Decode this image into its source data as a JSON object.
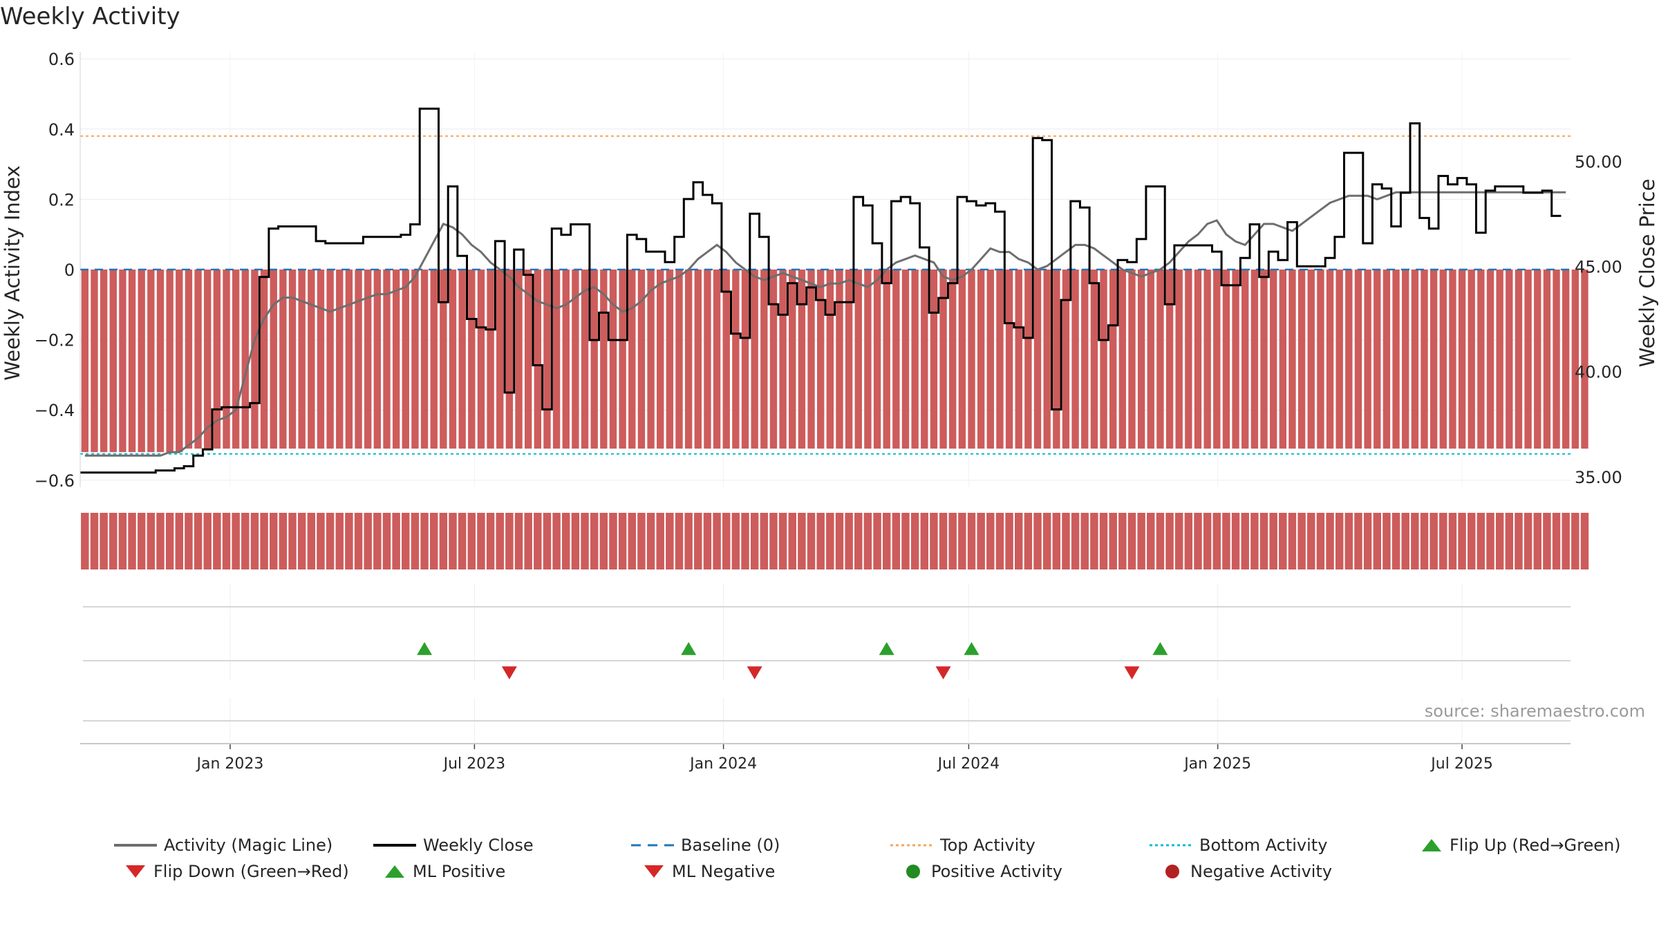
{
  "title": "Weekly Activity",
  "source": "source: sharemaestro.com",
  "colors": {
    "strong_green": "#2e8b57",
    "light_green": "#7fbf7f",
    "strong_red": "#cd5c5c",
    "light_red": "#e9967a",
    "magic_line": "#6e6e6e",
    "close": "#000000",
    "baseline": "#1f77b4",
    "top_line": "#f4a460",
    "bottom_line": "#00bcd4",
    "flip_up": "#2ca02c",
    "flip_down": "#d62728"
  },
  "legend": [
    {
      "label": "Activity (Magic Line)",
      "icon": "magic-line-icon"
    },
    {
      "label": "Weekly Close",
      "icon": "close-line-icon"
    },
    {
      "label": "Baseline (0)",
      "icon": "baseline-icon"
    },
    {
      "label": "Top Activity",
      "icon": "top-line-icon"
    },
    {
      "label": "Bottom Activity",
      "icon": "bottom-line-icon"
    },
    {
      "label": "Flip Up (Red→Green)",
      "icon": "triangle-up-icon"
    },
    {
      "label": "Flip Down (Green→Red)",
      "icon": "triangle-down-icon"
    },
    {
      "label": "ML Positive",
      "icon": "triangle-up-icon"
    },
    {
      "label": "ML Negative",
      "icon": "triangle-down-icon"
    },
    {
      "label": "Positive Activity",
      "icon": "green-dot-icon"
    },
    {
      "label": "Negative Activity",
      "icon": "red-dot-icon"
    }
  ],
  "chart_data": {
    "type": "bar",
    "title": "Weekly Activity",
    "ylabel": "Weekly Activity Index",
    "y2label": "Weekly Close Price",
    "ylim": [
      -0.62,
      0.62
    ],
    "y2lim": [
      34.5,
      55.2
    ],
    "yticks": [
      -0.6,
      -0.4,
      -0.2,
      0,
      0.2,
      0.4,
      0.6
    ],
    "ytick_labels": [
      "−0.6",
      "−0.4",
      "−0.2",
      "0",
      "0.2",
      "0.4",
      "0.6"
    ],
    "y2ticks": [
      35,
      40,
      45,
      50
    ],
    "y2tick_labels": [
      "35.00",
      "40.00",
      "45.00",
      "50.00"
    ],
    "x_start": "2022-10-03",
    "weeks": 158,
    "xticks": [
      {
        "label": "Jan 2023",
        "week": 15.4
      },
      {
        "label": "Jul 2023",
        "week": 41.3
      },
      {
        "label": "Jan 2024",
        "week": 67.7
      },
      {
        "label": "Jul 2024",
        "week": 93.7
      },
      {
        "label": "Jan 2025",
        "week": 120.1
      },
      {
        "label": "Jul 2025",
        "week": 146.0
      }
    ],
    "top_activity": 0.38,
    "bottom_activity": -0.525,
    "series": [
      {
        "name": "Weekly Activity Index",
        "type": "bar",
        "values": [
          -0.52,
          -0.52,
          -0.52,
          -0.52,
          -0.52,
          -0.52,
          -0.52,
          -0.52,
          -0.52,
          -0.52,
          -0.52,
          -0.51,
          -0.51,
          -0.51,
          -0.51,
          -0.51,
          -0.51,
          -0.51,
          -0.51,
          -0.51,
          -0.51,
          -0.51,
          -0.51,
          -0.51,
          -0.51,
          -0.51,
          -0.51,
          -0.51,
          -0.51,
          -0.51,
          -0.51,
          -0.51,
          -0.51,
          -0.51,
          -0.51,
          -0.51,
          -0.51,
          -0.51,
          -0.51,
          -0.51,
          -0.51,
          -0.51,
          -0.51,
          -0.51,
          -0.51,
          -0.51,
          -0.51,
          -0.51,
          -0.51,
          -0.51,
          -0.51,
          -0.51,
          -0.51,
          -0.51,
          -0.51,
          -0.51,
          -0.51,
          -0.51,
          -0.51,
          -0.51,
          -0.51,
          -0.51,
          -0.51,
          -0.51,
          -0.51,
          -0.51,
          -0.51,
          -0.51,
          -0.51,
          -0.51,
          -0.51,
          -0.51,
          -0.51,
          -0.51,
          -0.51,
          -0.51,
          -0.51,
          -0.51,
          -0.51,
          -0.51,
          -0.51,
          -0.51,
          -0.51,
          -0.51,
          -0.51,
          -0.51,
          -0.51,
          -0.51,
          -0.51,
          -0.51,
          -0.51,
          -0.51,
          -0.51,
          -0.51,
          -0.51,
          -0.51,
          -0.51,
          -0.51,
          -0.51,
          -0.51,
          -0.51,
          -0.51,
          -0.51,
          -0.51,
          -0.51,
          -0.51,
          -0.51,
          -0.51,
          -0.51,
          -0.51,
          -0.51,
          -0.51,
          -0.51,
          -0.51,
          -0.51,
          -0.51,
          -0.51,
          -0.51,
          -0.51,
          -0.51,
          -0.51,
          -0.51,
          -0.51,
          -0.51,
          -0.51,
          -0.51,
          -0.51,
          -0.51,
          -0.51,
          -0.51,
          -0.51,
          -0.51,
          -0.51,
          -0.51,
          -0.51,
          -0.51,
          -0.51,
          -0.51,
          -0.51,
          -0.51,
          -0.51,
          -0.51,
          -0.51,
          -0.51,
          -0.51,
          -0.51,
          -0.51,
          -0.51,
          -0.51,
          -0.51,
          -0.51,
          -0.51,
          -0.51,
          -0.51,
          -0.51,
          -0.51,
          -0.51,
          -0.51,
          -0.51,
          -0.51
        ]
      },
      {
        "name": "Activity (Magic Line)",
        "type": "line",
        "values": [
          -0.53,
          -0.53,
          -0.53,
          -0.53,
          -0.53,
          -0.53,
          -0.53,
          -0.53,
          -0.53,
          -0.52,
          -0.52,
          -0.5,
          -0.48,
          -0.45,
          -0.43,
          -0.42,
          -0.4,
          -0.3,
          -0.2,
          -0.14,
          -0.1,
          -0.08,
          -0.08,
          -0.09,
          -0.1,
          -0.11,
          -0.12,
          -0.11,
          -0.1,
          -0.09,
          -0.08,
          -0.07,
          -0.07,
          -0.06,
          -0.05,
          -0.02,
          0.03,
          0.08,
          0.13,
          0.12,
          0.1,
          0.07,
          0.05,
          0.02,
          0.0,
          -0.02,
          -0.05,
          -0.07,
          -0.09,
          -0.1,
          -0.11,
          -0.1,
          -0.08,
          -0.06,
          -0.05,
          -0.07,
          -0.1,
          -0.12,
          -0.11,
          -0.09,
          -0.06,
          -0.04,
          -0.03,
          -0.02,
          0.0,
          0.03,
          0.05,
          0.07,
          0.05,
          0.02,
          0.0,
          -0.02,
          -0.03,
          -0.02,
          -0.01,
          -0.02,
          -0.03,
          -0.04,
          -0.05,
          -0.04,
          -0.04,
          -0.03,
          -0.04,
          -0.05,
          -0.03,
          0.0,
          0.02,
          0.03,
          0.04,
          0.03,
          0.02,
          -0.02,
          -0.03,
          -0.02,
          0.0,
          0.03,
          0.06,
          0.05,
          0.05,
          0.03,
          0.02,
          0.0,
          0.01,
          0.03,
          0.05,
          0.07,
          0.07,
          0.06,
          0.04,
          0.02,
          0.0,
          -0.01,
          -0.02,
          -0.01,
          0.0,
          0.02,
          0.05,
          0.08,
          0.1,
          0.13,
          0.14,
          0.1,
          0.08,
          0.07,
          0.1,
          0.13,
          0.13,
          0.12,
          0.11,
          0.13,
          0.15,
          0.17,
          0.19,
          0.2,
          0.21,
          0.21,
          0.21,
          0.2,
          0.21,
          0.22,
          0.22,
          0.22,
          0.22,
          0.22,
          0.22,
          0.22,
          0.22,
          0.22,
          0.22,
          0.22,
          0.22,
          0.22,
          0.22,
          0.22,
          0.22,
          0.22,
          0.22,
          0.22
        ]
      },
      {
        "name": "Weekly Close",
        "type": "line",
        "axis": "right",
        "values": [
          35.2,
          35.2,
          35.2,
          35.2,
          35.2,
          35.2,
          35.2,
          35.2,
          35.3,
          35.3,
          35.4,
          35.5,
          36.0,
          36.3,
          38.2,
          38.3,
          38.3,
          38.3,
          38.5,
          44.5,
          46.8,
          46.9,
          46.9,
          46.9,
          46.9,
          46.2,
          46.1,
          46.1,
          46.1,
          46.1,
          46.4,
          46.4,
          46.4,
          46.4,
          46.5,
          47.0,
          52.5,
          52.5,
          43.3,
          48.8,
          45.5,
          42.5,
          42.1,
          42.0,
          46.2,
          39.0,
          45.8,
          44.6,
          40.3,
          38.2,
          46.8,
          46.5,
          47.0,
          47.0,
          41.5,
          42.8,
          41.5,
          41.5,
          46.5,
          46.3,
          45.7,
          45.7,
          45.2,
          46.4,
          48.2,
          49.0,
          48.4,
          48.0,
          43.8,
          41.8,
          41.6,
          47.5,
          46.4,
          43.2,
          42.7,
          44.2,
          43.2,
          44.0,
          43.4,
          42.7,
          43.3,
          43.3,
          48.3,
          47.9,
          46.1,
          44.2,
          48.1,
          48.3,
          48.0,
          45.9,
          42.8,
          43.5,
          44.2,
          48.3,
          48.1,
          47.9,
          48.0,
          47.6,
          42.3,
          42.1,
          41.6,
          51.1,
          51.0,
          38.2,
          43.4,
          48.1,
          47.8,
          44.2,
          41.5,
          42.2,
          45.3,
          45.2,
          46.3,
          48.8,
          48.8,
          43.2,
          46.0,
          46.0,
          46.0,
          46.0,
          45.7,
          44.1,
          44.1,
          45.4,
          47.0,
          44.5,
          45.7,
          45.3,
          47.1,
          45.0,
          45.0,
          45.0,
          45.4,
          46.4,
          50.4,
          50.4,
          46.1,
          48.9,
          48.7,
          46.9,
          48.5,
          51.8,
          47.3,
          46.8,
          49.3,
          48.9,
          49.2,
          48.9,
          46.6,
          48.6,
          48.8,
          48.8,
          48.8,
          48.5,
          48.5,
          48.6,
          47.4
        ]
      }
    ],
    "flip_up_labels": [
      "Flip Up (Red→Green)"
    ],
    "flip_down_labels": [
      "Flip Down (Green→Red)"
    ]
  }
}
